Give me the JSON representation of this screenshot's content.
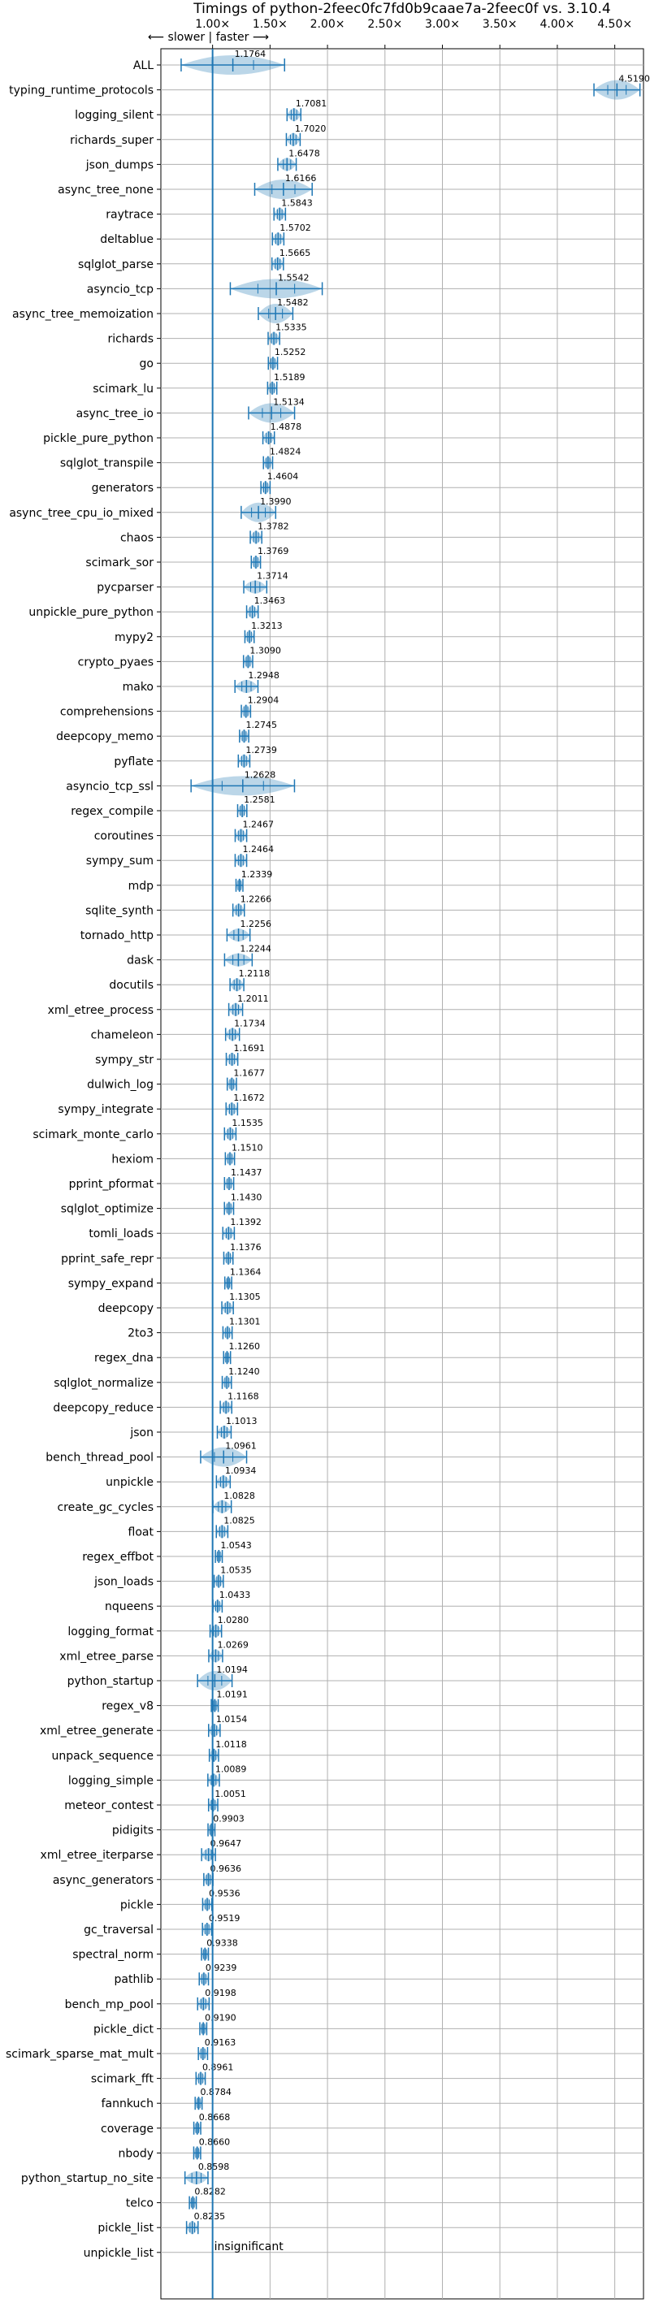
{
  "chart_data": {
    "type": "violin",
    "title": "Timings of python-2feec0fc7fd0b9caae7a-2feec0f vs. 3.10.4",
    "direction_note": "⟵ slower  |  faster ⟶",
    "insignificant_label": "insignificant",
    "xlim": [
      0.55,
      4.75
    ],
    "x_ticks": [
      1.0,
      1.5,
      2.0,
      2.5,
      3.0,
      3.5,
      4.0,
      4.5
    ],
    "x_tick_labels": [
      "1.00×",
      "1.50×",
      "2.00×",
      "2.50×",
      "3.00×",
      "3.50×",
      "4.00×",
      "4.50×"
    ],
    "reference_line": 1.0,
    "grid": true,
    "benchmarks": [
      {
        "name": "ALL",
        "value": 1.1764,
        "label": "1.1764",
        "spread": 0.45
      },
      {
        "name": "typing_runtime_protocols",
        "value": 4.519,
        "label": "4.5190",
        "spread": 0.2
      },
      {
        "name": "logging_silent",
        "value": 1.7081,
        "label": "1.7081",
        "spread": 0.06
      },
      {
        "name": "richards_super",
        "value": 1.702,
        "label": "1.7020",
        "spread": 0.06
      },
      {
        "name": "json_dumps",
        "value": 1.6478,
        "label": "1.6478",
        "spread": 0.08
      },
      {
        "name": "async_tree_none",
        "value": 1.6166,
        "label": "1.6166",
        "spread": 0.25
      },
      {
        "name": "raytrace",
        "value": 1.5843,
        "label": "1.5843",
        "spread": 0.05
      },
      {
        "name": "deltablue",
        "value": 1.5702,
        "label": "1.5702",
        "spread": 0.05
      },
      {
        "name": "sqlglot_parse",
        "value": 1.5665,
        "label": "1.5665",
        "spread": 0.05
      },
      {
        "name": "asyncio_tcp",
        "value": 1.5542,
        "label": "1.5542",
        "spread": 0.4
      },
      {
        "name": "async_tree_memoization",
        "value": 1.5482,
        "label": "1.5482",
        "spread": 0.15
      },
      {
        "name": "richards",
        "value": 1.5335,
        "label": "1.5335",
        "spread": 0.05
      },
      {
        "name": "go",
        "value": 1.5252,
        "label": "1.5252",
        "spread": 0.04
      },
      {
        "name": "scimark_lu",
        "value": 1.5189,
        "label": "1.5189",
        "spread": 0.04
      },
      {
        "name": "async_tree_io",
        "value": 1.5134,
        "label": "1.5134",
        "spread": 0.2
      },
      {
        "name": "pickle_pure_python",
        "value": 1.4878,
        "label": "1.4878",
        "spread": 0.05
      },
      {
        "name": "sqlglot_transpile",
        "value": 1.4824,
        "label": "1.4824",
        "spread": 0.04
      },
      {
        "name": "generators",
        "value": 1.4604,
        "label": "1.4604",
        "spread": 0.04
      },
      {
        "name": "async_tree_cpu_io_mixed",
        "value": 1.399,
        "label": "1.3990",
        "spread": 0.15
      },
      {
        "name": "chaos",
        "value": 1.3782,
        "label": "1.3782",
        "spread": 0.05
      },
      {
        "name": "scimark_sor",
        "value": 1.3769,
        "label": "1.3769",
        "spread": 0.04
      },
      {
        "name": "pycparser",
        "value": 1.3714,
        "label": "1.3714",
        "spread": 0.1
      },
      {
        "name": "unpickle_pure_python",
        "value": 1.3463,
        "label": "1.3463",
        "spread": 0.05
      },
      {
        "name": "mypy2",
        "value": 1.3213,
        "label": "1.3213",
        "spread": 0.04
      },
      {
        "name": "crypto_pyaes",
        "value": 1.309,
        "label": "1.3090",
        "spread": 0.04
      },
      {
        "name": "mako",
        "value": 1.2948,
        "label": "1.2948",
        "spread": 0.1
      },
      {
        "name": "comprehensions",
        "value": 1.2904,
        "label": "1.2904",
        "spread": 0.04
      },
      {
        "name": "deepcopy_memo",
        "value": 1.2745,
        "label": "1.2745",
        "spread": 0.04
      },
      {
        "name": "pyflate",
        "value": 1.2739,
        "label": "1.2739",
        "spread": 0.05
      },
      {
        "name": "asyncio_tcp_ssl",
        "value": 1.2628,
        "label": "1.2628",
        "spread": 0.45
      },
      {
        "name": "regex_compile",
        "value": 1.2581,
        "label": "1.2581",
        "spread": 0.04
      },
      {
        "name": "coroutines",
        "value": 1.2467,
        "label": "1.2467",
        "spread": 0.05
      },
      {
        "name": "sympy_sum",
        "value": 1.2464,
        "label": "1.2464",
        "spread": 0.05
      },
      {
        "name": "mdp",
        "value": 1.2339,
        "label": "1.2339",
        "spread": 0.03
      },
      {
        "name": "sqlite_synth",
        "value": 1.2266,
        "label": "1.2266",
        "spread": 0.05
      },
      {
        "name": "tornado_http",
        "value": 1.2256,
        "label": "1.2256",
        "spread": 0.1
      },
      {
        "name": "dask",
        "value": 1.2244,
        "label": "1.2244",
        "spread": 0.12
      },
      {
        "name": "docutils",
        "value": 1.2118,
        "label": "1.2118",
        "spread": 0.06
      },
      {
        "name": "xml_etree_process",
        "value": 1.2011,
        "label": "1.2011",
        "spread": 0.06
      },
      {
        "name": "chameleon",
        "value": 1.1734,
        "label": "1.1734",
        "spread": 0.06
      },
      {
        "name": "sympy_str",
        "value": 1.1691,
        "label": "1.1691",
        "spread": 0.05
      },
      {
        "name": "dulwich_log",
        "value": 1.1677,
        "label": "1.1677",
        "spread": 0.04
      },
      {
        "name": "sympy_integrate",
        "value": 1.1672,
        "label": "1.1672",
        "spread": 0.05
      },
      {
        "name": "scimark_monte_carlo",
        "value": 1.1535,
        "label": "1.1535",
        "spread": 0.05
      },
      {
        "name": "hexiom",
        "value": 1.151,
        "label": "1.1510",
        "spread": 0.04
      },
      {
        "name": "pprint_pformat",
        "value": 1.1437,
        "label": "1.1437",
        "spread": 0.04
      },
      {
        "name": "sqlglot_optimize",
        "value": 1.143,
        "label": "1.1430",
        "spread": 0.04
      },
      {
        "name": "tomli_loads",
        "value": 1.1392,
        "label": "1.1392",
        "spread": 0.05
      },
      {
        "name": "pprint_safe_repr",
        "value": 1.1376,
        "label": "1.1376",
        "spread": 0.04
      },
      {
        "name": "sympy_expand",
        "value": 1.1364,
        "label": "1.1364",
        "spread": 0.03
      },
      {
        "name": "deepcopy",
        "value": 1.1305,
        "label": "1.1305",
        "spread": 0.05
      },
      {
        "name": "2to3",
        "value": 1.1301,
        "label": "1.1301",
        "spread": 0.04
      },
      {
        "name": "regex_dna",
        "value": 1.126,
        "label": "1.1260",
        "spread": 0.03
      },
      {
        "name": "sqlglot_normalize",
        "value": 1.124,
        "label": "1.1240",
        "spread": 0.04
      },
      {
        "name": "deepcopy_reduce",
        "value": 1.1168,
        "label": "1.1168",
        "spread": 0.05
      },
      {
        "name": "json",
        "value": 1.1013,
        "label": "1.1013",
        "spread": 0.06
      },
      {
        "name": "bench_thread_pool",
        "value": 1.0961,
        "label": "1.0961",
        "spread": 0.2
      },
      {
        "name": "unpickle",
        "value": 1.0934,
        "label": "1.0934",
        "spread": 0.06
      },
      {
        "name": "create_gc_cycles",
        "value": 1.0828,
        "label": "1.0828",
        "spread": 0.08
      },
      {
        "name": "float",
        "value": 1.0825,
        "label": "1.0825",
        "spread": 0.05
      },
      {
        "name": "regex_effbot",
        "value": 1.0543,
        "label": "1.0543",
        "spread": 0.03
      },
      {
        "name": "json_loads",
        "value": 1.0535,
        "label": "1.0535",
        "spread": 0.04
      },
      {
        "name": "nqueens",
        "value": 1.0433,
        "label": "1.0433",
        "spread": 0.04
      },
      {
        "name": "logging_format",
        "value": 1.028,
        "label": "1.0280",
        "spread": 0.05
      },
      {
        "name": "xml_etree_parse",
        "value": 1.0269,
        "label": "1.0269",
        "spread": 0.06
      },
      {
        "name": "python_startup",
        "value": 1.0194,
        "label": "1.0194",
        "spread": 0.15
      },
      {
        "name": "regex_v8",
        "value": 1.0191,
        "label": "1.0191",
        "spread": 0.03
      },
      {
        "name": "xml_etree_generate",
        "value": 1.0154,
        "label": "1.0154",
        "spread": 0.05
      },
      {
        "name": "unpack_sequence",
        "value": 1.0118,
        "label": "1.0118",
        "spread": 0.04
      },
      {
        "name": "logging_simple",
        "value": 1.0089,
        "label": "1.0089",
        "spread": 0.05
      },
      {
        "name": "meteor_contest",
        "value": 1.0051,
        "label": "1.0051",
        "spread": 0.04
      },
      {
        "name": "pidigits",
        "value": 0.9903,
        "label": "0.9903",
        "spread": 0.03
      },
      {
        "name": "xml_etree_iterparse",
        "value": 0.9647,
        "label": "0.9647",
        "spread": 0.06
      },
      {
        "name": "async_generators",
        "value": 0.9636,
        "label": "0.9636",
        "spread": 0.04
      },
      {
        "name": "pickle",
        "value": 0.9536,
        "label": "0.9536",
        "spread": 0.04
      },
      {
        "name": "gc_traversal",
        "value": 0.9519,
        "label": "0.9519",
        "spread": 0.04
      },
      {
        "name": "spectral_norm",
        "value": 0.9338,
        "label": "0.9338",
        "spread": 0.03
      },
      {
        "name": "pathlib",
        "value": 0.9239,
        "label": "0.9239",
        "spread": 0.04
      },
      {
        "name": "bench_mp_pool",
        "value": 0.9198,
        "label": "0.9198",
        "spread": 0.05
      },
      {
        "name": "pickle_dict",
        "value": 0.919,
        "label": "0.9190",
        "spread": 0.03
      },
      {
        "name": "scimark_sparse_mat_mult",
        "value": 0.9163,
        "label": "0.9163",
        "spread": 0.04
      },
      {
        "name": "scimark_fft",
        "value": 0.8961,
        "label": "0.8961",
        "spread": 0.04
      },
      {
        "name": "fannkuch",
        "value": 0.8784,
        "label": "0.8784",
        "spread": 0.03
      },
      {
        "name": "coverage",
        "value": 0.8668,
        "label": "0.8668",
        "spread": 0.03
      },
      {
        "name": "nbody",
        "value": 0.866,
        "label": "0.8660",
        "spread": 0.03
      },
      {
        "name": "python_startup_no_site",
        "value": 0.8598,
        "label": "0.8598",
        "spread": 0.1
      },
      {
        "name": "telco",
        "value": 0.8282,
        "label": "0.8282",
        "spread": 0.03
      },
      {
        "name": "pickle_list",
        "value": 0.8235,
        "label": "0.8235",
        "spread": 0.05
      },
      {
        "name": "unpickle_list",
        "value": null,
        "label": "",
        "spread": 0
      }
    ]
  }
}
